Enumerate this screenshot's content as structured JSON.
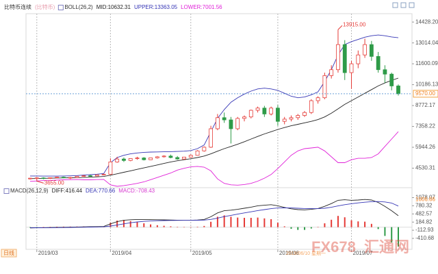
{
  "chart_data": [
    {
      "type": "candlestick",
      "title": "比特币连续",
      "subtitle": "(比特币)",
      "indicator": "BOLL(26,2)",
      "up_color": "#e53935",
      "down_color": "#2e9b48",
      "categories": [
        null,
        "2019/03",
        null,
        null,
        null,
        null,
        null,
        null,
        null,
        null,
        null,
        null,
        "2019/04",
        null,
        null,
        null,
        null,
        null,
        null,
        null,
        null,
        null,
        null,
        null,
        "2019/05",
        null,
        null,
        null,
        null,
        null,
        null,
        null,
        null,
        null,
        null,
        null,
        null,
        "2019/06",
        null,
        null,
        null,
        null,
        null,
        null,
        null,
        null,
        null,
        null,
        "2019/07",
        null,
        null,
        null,
        null,
        null,
        null,
        null
      ],
      "open": [
        3820,
        3850,
        3870,
        3830,
        3880,
        3920,
        3880,
        3900,
        3980,
        4020,
        4000,
        4080,
        4120,
        4950,
        5150,
        5050,
        5180,
        5220,
        5100,
        5230,
        5300,
        5350,
        5250,
        5150,
        5280,
        5400,
        5700,
        5950,
        7200,
        7950,
        7800,
        7200,
        7900,
        8000,
        8450,
        8600,
        8200,
        8600,
        7700,
        7850,
        7950,
        8100,
        8300,
        9100,
        9300,
        10800,
        11200,
        12900,
        11000,
        11600,
        12200,
        12900,
        12100,
        11200,
        10900,
        10100
      ],
      "high": [
        3880,
        3920,
        3910,
        3900,
        3950,
        3960,
        3940,
        4000,
        4050,
        4080,
        4100,
        4150,
        5200,
        5300,
        5250,
        5200,
        5300,
        5280,
        5250,
        5350,
        5400,
        5450,
        5350,
        5300,
        5450,
        5750,
        6000,
        7400,
        8200,
        8300,
        8000,
        8000,
        8100,
        8500,
        8700,
        8750,
        8700,
        8800,
        8000,
        8100,
        8200,
        8400,
        9200,
        9400,
        11000,
        11500,
        13915,
        13200,
        11800,
        12500,
        13300,
        13150,
        12400,
        11500,
        11000,
        10200
      ],
      "low": [
        3760,
        3655,
        3780,
        3790,
        3850,
        3850,
        3790,
        3880,
        3950,
        3960,
        3980,
        4050,
        4100,
        4900,
        4950,
        5000,
        5100,
        5050,
        5080,
        5180,
        5250,
        5200,
        5100,
        5100,
        5250,
        5380,
        5650,
        5900,
        7100,
        7600,
        6200,
        7100,
        7700,
        7900,
        8300,
        8000,
        8100,
        7400,
        7500,
        7700,
        7800,
        8000,
        8200,
        8900,
        9200,
        10600,
        11000,
        10500,
        9900,
        11300,
        12000,
        11800,
        11000,
        10300,
        9800,
        9450
      ],
      "close": [
        3850,
        3870,
        3830,
        3880,
        3920,
        3880,
        3900,
        3980,
        4020,
        4000,
        4080,
        4120,
        4950,
        5150,
        5050,
        5180,
        5220,
        5100,
        5230,
        5300,
        5350,
        5250,
        5150,
        5280,
        5400,
        5700,
        5950,
        7200,
        7950,
        7800,
        7200,
        7900,
        8000,
        8450,
        8600,
        8200,
        8600,
        7700,
        7850,
        7950,
        8100,
        8300,
        9100,
        9300,
        10800,
        11200,
        12900,
        11000,
        11600,
        12200,
        12900,
        12100,
        11200,
        10900,
        10100,
        9570
      ],
      "series": [
        {
          "name": "MID:10632.31",
          "color": "#222222",
          "values": [
            3820,
            3830,
            3840,
            3850,
            3860,
            3870,
            3880,
            3890,
            3900,
            3920,
            3940,
            3970,
            4050,
            4150,
            4250,
            4350,
            4450,
            4550,
            4650,
            4750,
            4850,
            4950,
            5030,
            5100,
            5170,
            5250,
            5350,
            5500,
            5680,
            5850,
            6000,
            6150,
            6320,
            6500,
            6680,
            6850,
            7000,
            7150,
            7280,
            7400,
            7500,
            7600,
            7700,
            7820,
            8000,
            8250,
            8550,
            8850,
            9100,
            9350,
            9600,
            9850,
            10100,
            10300,
            10480,
            10632.31
          ]
        },
        {
          "name": "UPPER:13363.05",
          "color": "#3535b5",
          "values": [
            4000,
            4000,
            3990,
            3990,
            3990,
            4000,
            4010,
            4030,
            4060,
            4090,
            4120,
            4170,
            4900,
            5250,
            5400,
            5500,
            5560,
            5600,
            5620,
            5630,
            5640,
            5650,
            5660,
            5680,
            5720,
            5850,
            6100,
            7000,
            7900,
            8500,
            9000,
            9300,
            9550,
            9750,
            9900,
            9950,
            9900,
            9800,
            9600,
            9400,
            9300,
            9350,
            9500,
            9700,
            10400,
            11200,
            12200,
            12900,
            13100,
            13250,
            13400,
            13500,
            13550,
            13500,
            13420,
            13363.05
          ]
        },
        {
          "name": "LOWER:7001.56",
          "color": "#e020d8",
          "values": [
            3640,
            3660,
            3690,
            3700,
            3720,
            3740,
            3750,
            3760,
            3740,
            3740,
            3760,
            3770,
            3400,
            3300,
            3350,
            3420,
            3500,
            3600,
            3750,
            3900,
            4050,
            4200,
            4400,
            4520,
            4620,
            4650,
            4600,
            4350,
            3800,
            3500,
            3400,
            3380,
            3420,
            3500,
            3650,
            3850,
            4100,
            4500,
            4950,
            5400,
            5700,
            5850,
            5900,
            5950,
            5700,
            5300,
            4900,
            4900,
            5100,
            5200,
            5200,
            5250,
            5500,
            6000,
            6500,
            7001.56
          ]
        }
      ],
      "ylim": [
        3300,
        14900
      ],
      "yticks": [
        {
          "value": 14428.2,
          "label": "14428.20"
        },
        13014.04,
        11600.09,
        10186.13,
        8772.17,
        7358.22,
        5944.26,
        4530.31
      ],
      "last_price": {
        "value": 9570,
        "label": "9570.00"
      },
      "max_label": {
        "value": 13915,
        "label": "13915.00"
      },
      "min_label": {
        "value": 3655,
        "label": "3655.00"
      }
    },
    {
      "type": "macd",
      "title": "MACD(26,12,9)",
      "series": [
        {
          "name": "DIFF:416.44",
          "color": "#222222",
          "values": [
            -30,
            -25,
            -20,
            -15,
            -10,
            -5,
            0,
            5,
            10,
            15,
            20,
            25,
            120,
            200,
            250,
            270,
            280,
            280,
            275,
            270,
            265,
            260,
            255,
            250,
            250,
            260,
            280,
            380,
            520,
            600,
            620,
            650,
            690,
            730,
            780,
            800,
            820,
            780,
            720,
            670,
            640,
            630,
            650,
            680,
            760,
            860,
            980,
            1000,
            980,
            990,
            1010,
            990,
            900,
            760,
            600,
            416.44
          ]
        },
        {
          "name": "DEA:770.66",
          "color": "#3535b5",
          "values": [
            -20,
            -22,
            -21,
            -19,
            -17,
            -14,
            -10,
            -6,
            -2,
            3,
            8,
            13,
            40,
            80,
            120,
            160,
            190,
            210,
            225,
            235,
            240,
            245,
            248,
            249,
            249,
            252,
            258,
            282,
            330,
            385,
            430,
            475,
            520,
            560,
            605,
            640,
            675,
            700,
            705,
            700,
            690,
            680,
            675,
            675,
            690,
            725,
            775,
            820,
            855,
            885,
            910,
            930,
            935,
            920,
            880,
            770.66
          ]
        },
        {
          "name": "MACD:-708.43",
          "color": "#d63ad0",
          "values": [
            -20,
            -6,
            2,
            8,
            14,
            18,
            20,
            22,
            24,
            24,
            24,
            24,
            160,
            240,
            260,
            220,
            180,
            140,
            100,
            70,
            50,
            30,
            14,
            2,
            2,
            16,
            44,
            196,
            380,
            430,
            380,
            350,
            340,
            340,
            350,
            320,
            290,
            160,
            30,
            -60,
            -100,
            -100,
            -50,
            10,
            140,
            270,
            410,
            360,
            250,
            210,
            200,
            120,
            -70,
            -320,
            -560,
            -708.43
          ]
        }
      ],
      "ylim": [
        -760,
        1190
      ],
      "yticks": [
        1078.07,
        780.32,
        482.57,
        184.82,
        -112.93,
        -410.68
      ],
      "marker": 1006.66
    }
  ],
  "period": "日线",
  "watermark": [
    "FX678",
    "汇通网",
    "2019/06/10 星期一"
  ]
}
